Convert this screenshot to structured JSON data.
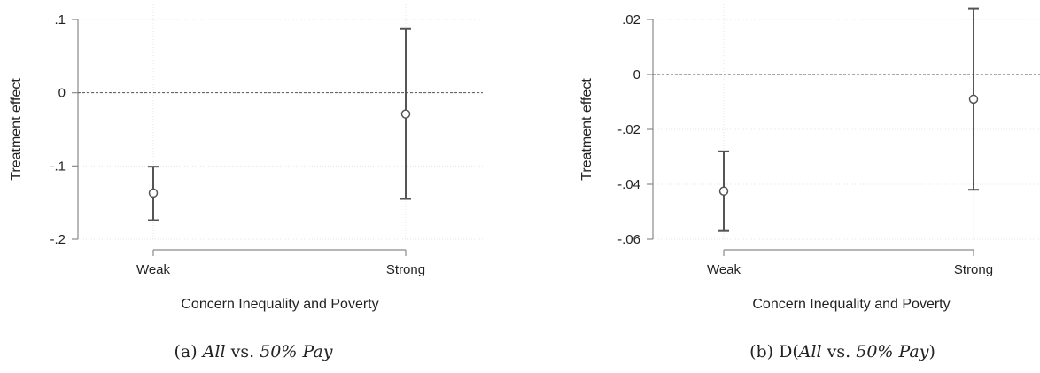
{
  "chart_data": [
    {
      "type": "scatter",
      "caption_prefix": "(a) ",
      "caption_italic_1": "All",
      "caption_mid": " vs. ",
      "caption_italic_2": "50% Pay",
      "caption_suffix": "",
      "xlabel": "Concern Inequality and Poverty",
      "ylabel": "Treatment effect",
      "categories": [
        "Weak",
        "Strong"
      ],
      "estimates": [
        -0.137,
        -0.029
      ],
      "ci_low": [
        -0.174,
        -0.145
      ],
      "ci_high": [
        -0.101,
        0.087
      ],
      "ylim": [
        -0.2,
        0.1
      ],
      "yticks": [
        -0.2,
        -0.1,
        0,
        0.1
      ],
      "ytick_labels": [
        "-.2",
        "-.1",
        "0",
        ".1"
      ],
      "reference_line": 0,
      "grid": true
    },
    {
      "type": "scatter",
      "caption_prefix": "(b) D(",
      "caption_italic_1": "All",
      "caption_mid": " vs. ",
      "caption_italic_2": "50% Pay",
      "caption_suffix": ")",
      "xlabel": "Concern Inequality and Poverty",
      "ylabel": "Treatment effect",
      "categories": [
        "Weak",
        "Strong"
      ],
      "estimates": [
        -0.0425,
        -0.009
      ],
      "ci_low": [
        -0.057,
        -0.042
      ],
      "ci_high": [
        -0.028,
        0.024
      ],
      "ylim": [
        -0.06,
        0.02
      ],
      "yticks": [
        -0.06,
        -0.04,
        -0.02,
        0,
        0.02
      ],
      "ytick_labels": [
        "-.06",
        "-.04",
        "-.02",
        "0",
        ".02"
      ],
      "reference_line": 0,
      "grid": true
    }
  ]
}
